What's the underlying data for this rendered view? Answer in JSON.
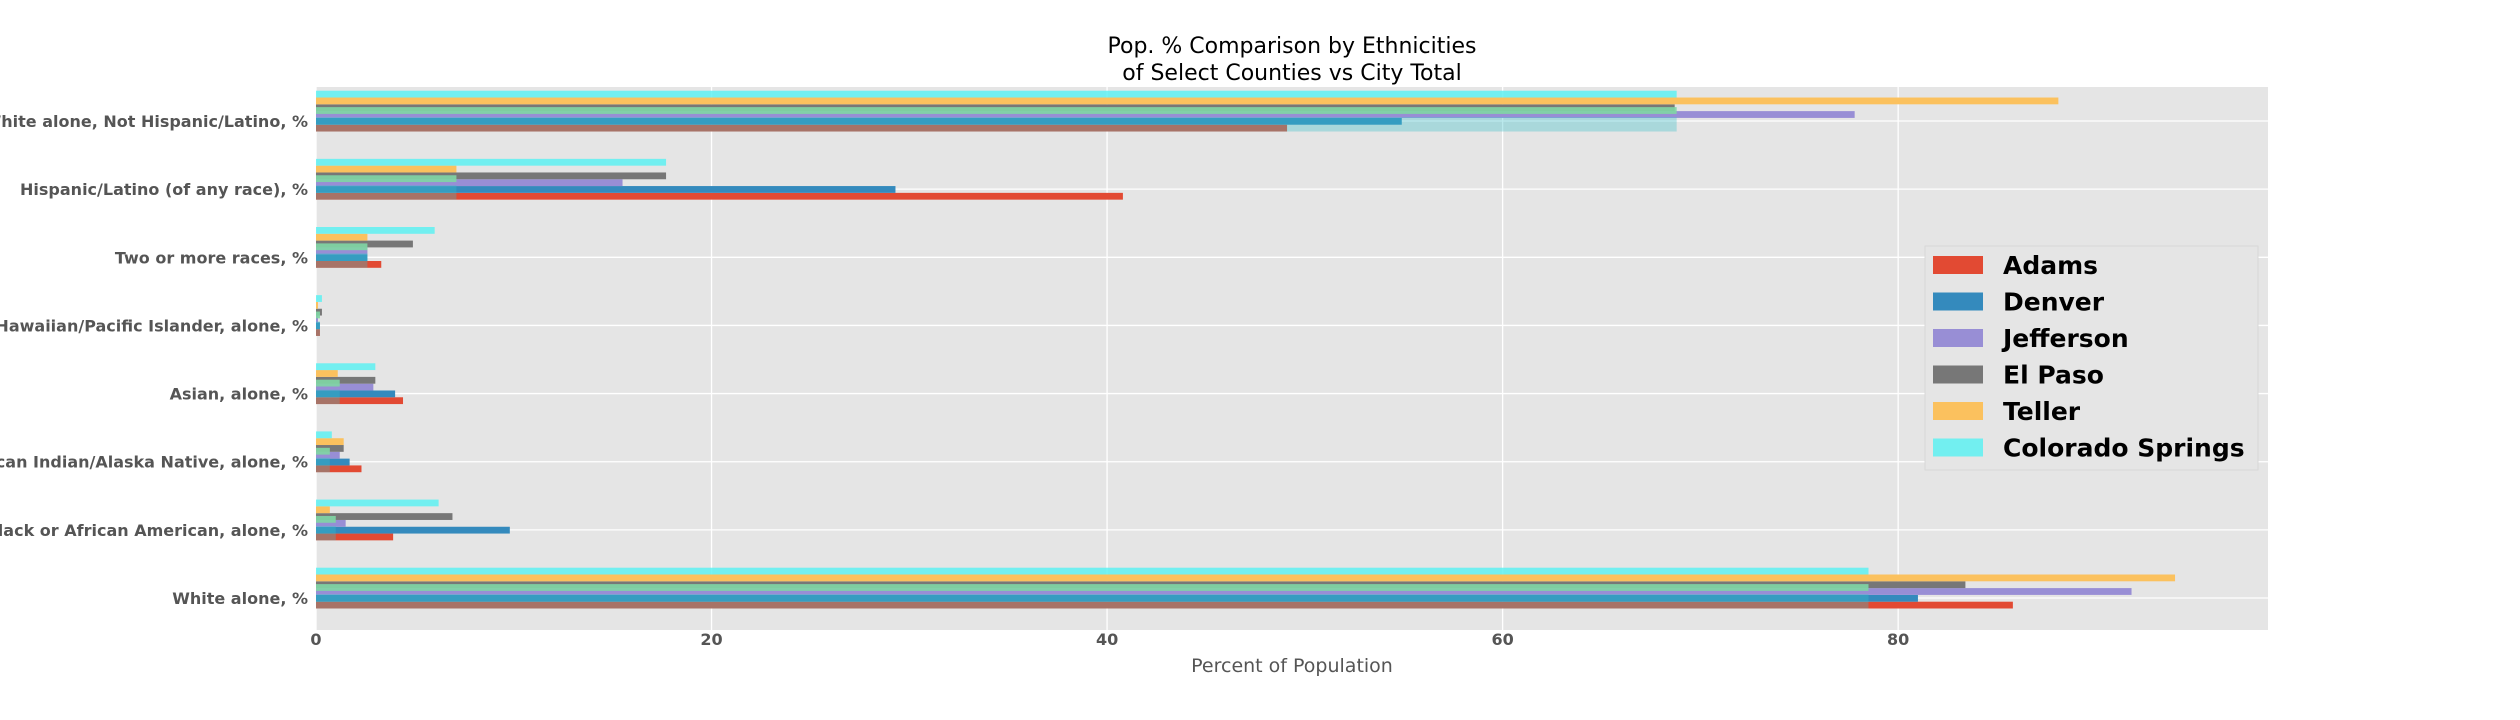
{
  "chart_data": {
    "type": "bar",
    "orientation": "horizontal",
    "title": "Pop. % Comparison by Ethnicities\nof Select Counties vs City Total",
    "xlabel": "Percent of Population",
    "ylabel": "",
    "xlim": [
      0,
      98.7
    ],
    "xticks": [
      0,
      20,
      40,
      60,
      80
    ],
    "grid": true,
    "legend_position": "center-right",
    "categories": [
      "White alone, %",
      "Black or African American, alone, %",
      "American Indian/Alaska Native, alone, %",
      "Asian, alone, %",
      "Native Hawaiian/Pacific Islander, alone, %",
      "Two or more races, %",
      "Hispanic/Latino (of any race), %",
      "White alone, Not Hispanic/Latino, %"
    ],
    "series": [
      {
        "name": "Adams",
        "color": "#E24A33",
        "values": [
          85.8,
          3.9,
          2.3,
          4.4,
          0.2,
          3.3,
          40.8,
          49.1
        ]
      },
      {
        "name": "Denver",
        "color": "#348ABD",
        "values": [
          81.0,
          9.8,
          1.7,
          4.0,
          0.2,
          2.6,
          29.3,
          54.9
        ]
      },
      {
        "name": "Jefferson",
        "color": "#988ED5",
        "values": [
          91.8,
          1.5,
          1.2,
          2.9,
          0.1,
          2.6,
          15.5,
          77.8
        ]
      },
      {
        "name": "El Paso",
        "color": "#777777",
        "values": [
          83.4,
          6.9,
          1.4,
          3.0,
          0.3,
          4.9,
          17.7,
          68.7
        ]
      },
      {
        "name": "Teller",
        "color": "#FBC15E",
        "values": [
          94.0,
          0.7,
          1.4,
          1.1,
          0.1,
          2.6,
          7.1,
          88.1
        ]
      },
      {
        "name": "Colorado Springs",
        "color": "#5EF1F2",
        "alpha": 0.85,
        "values": [
          78.5,
          6.2,
          0.8,
          3.0,
          0.3,
          6.0,
          17.7,
          68.8
        ]
      }
    ],
    "overlay": {
      "name": "",
      "color": "#7FD6A4",
      "values": [
        78.5,
        1.0,
        0.7,
        1.2,
        0.2,
        2.6,
        7.1,
        68.8
      ]
    }
  }
}
